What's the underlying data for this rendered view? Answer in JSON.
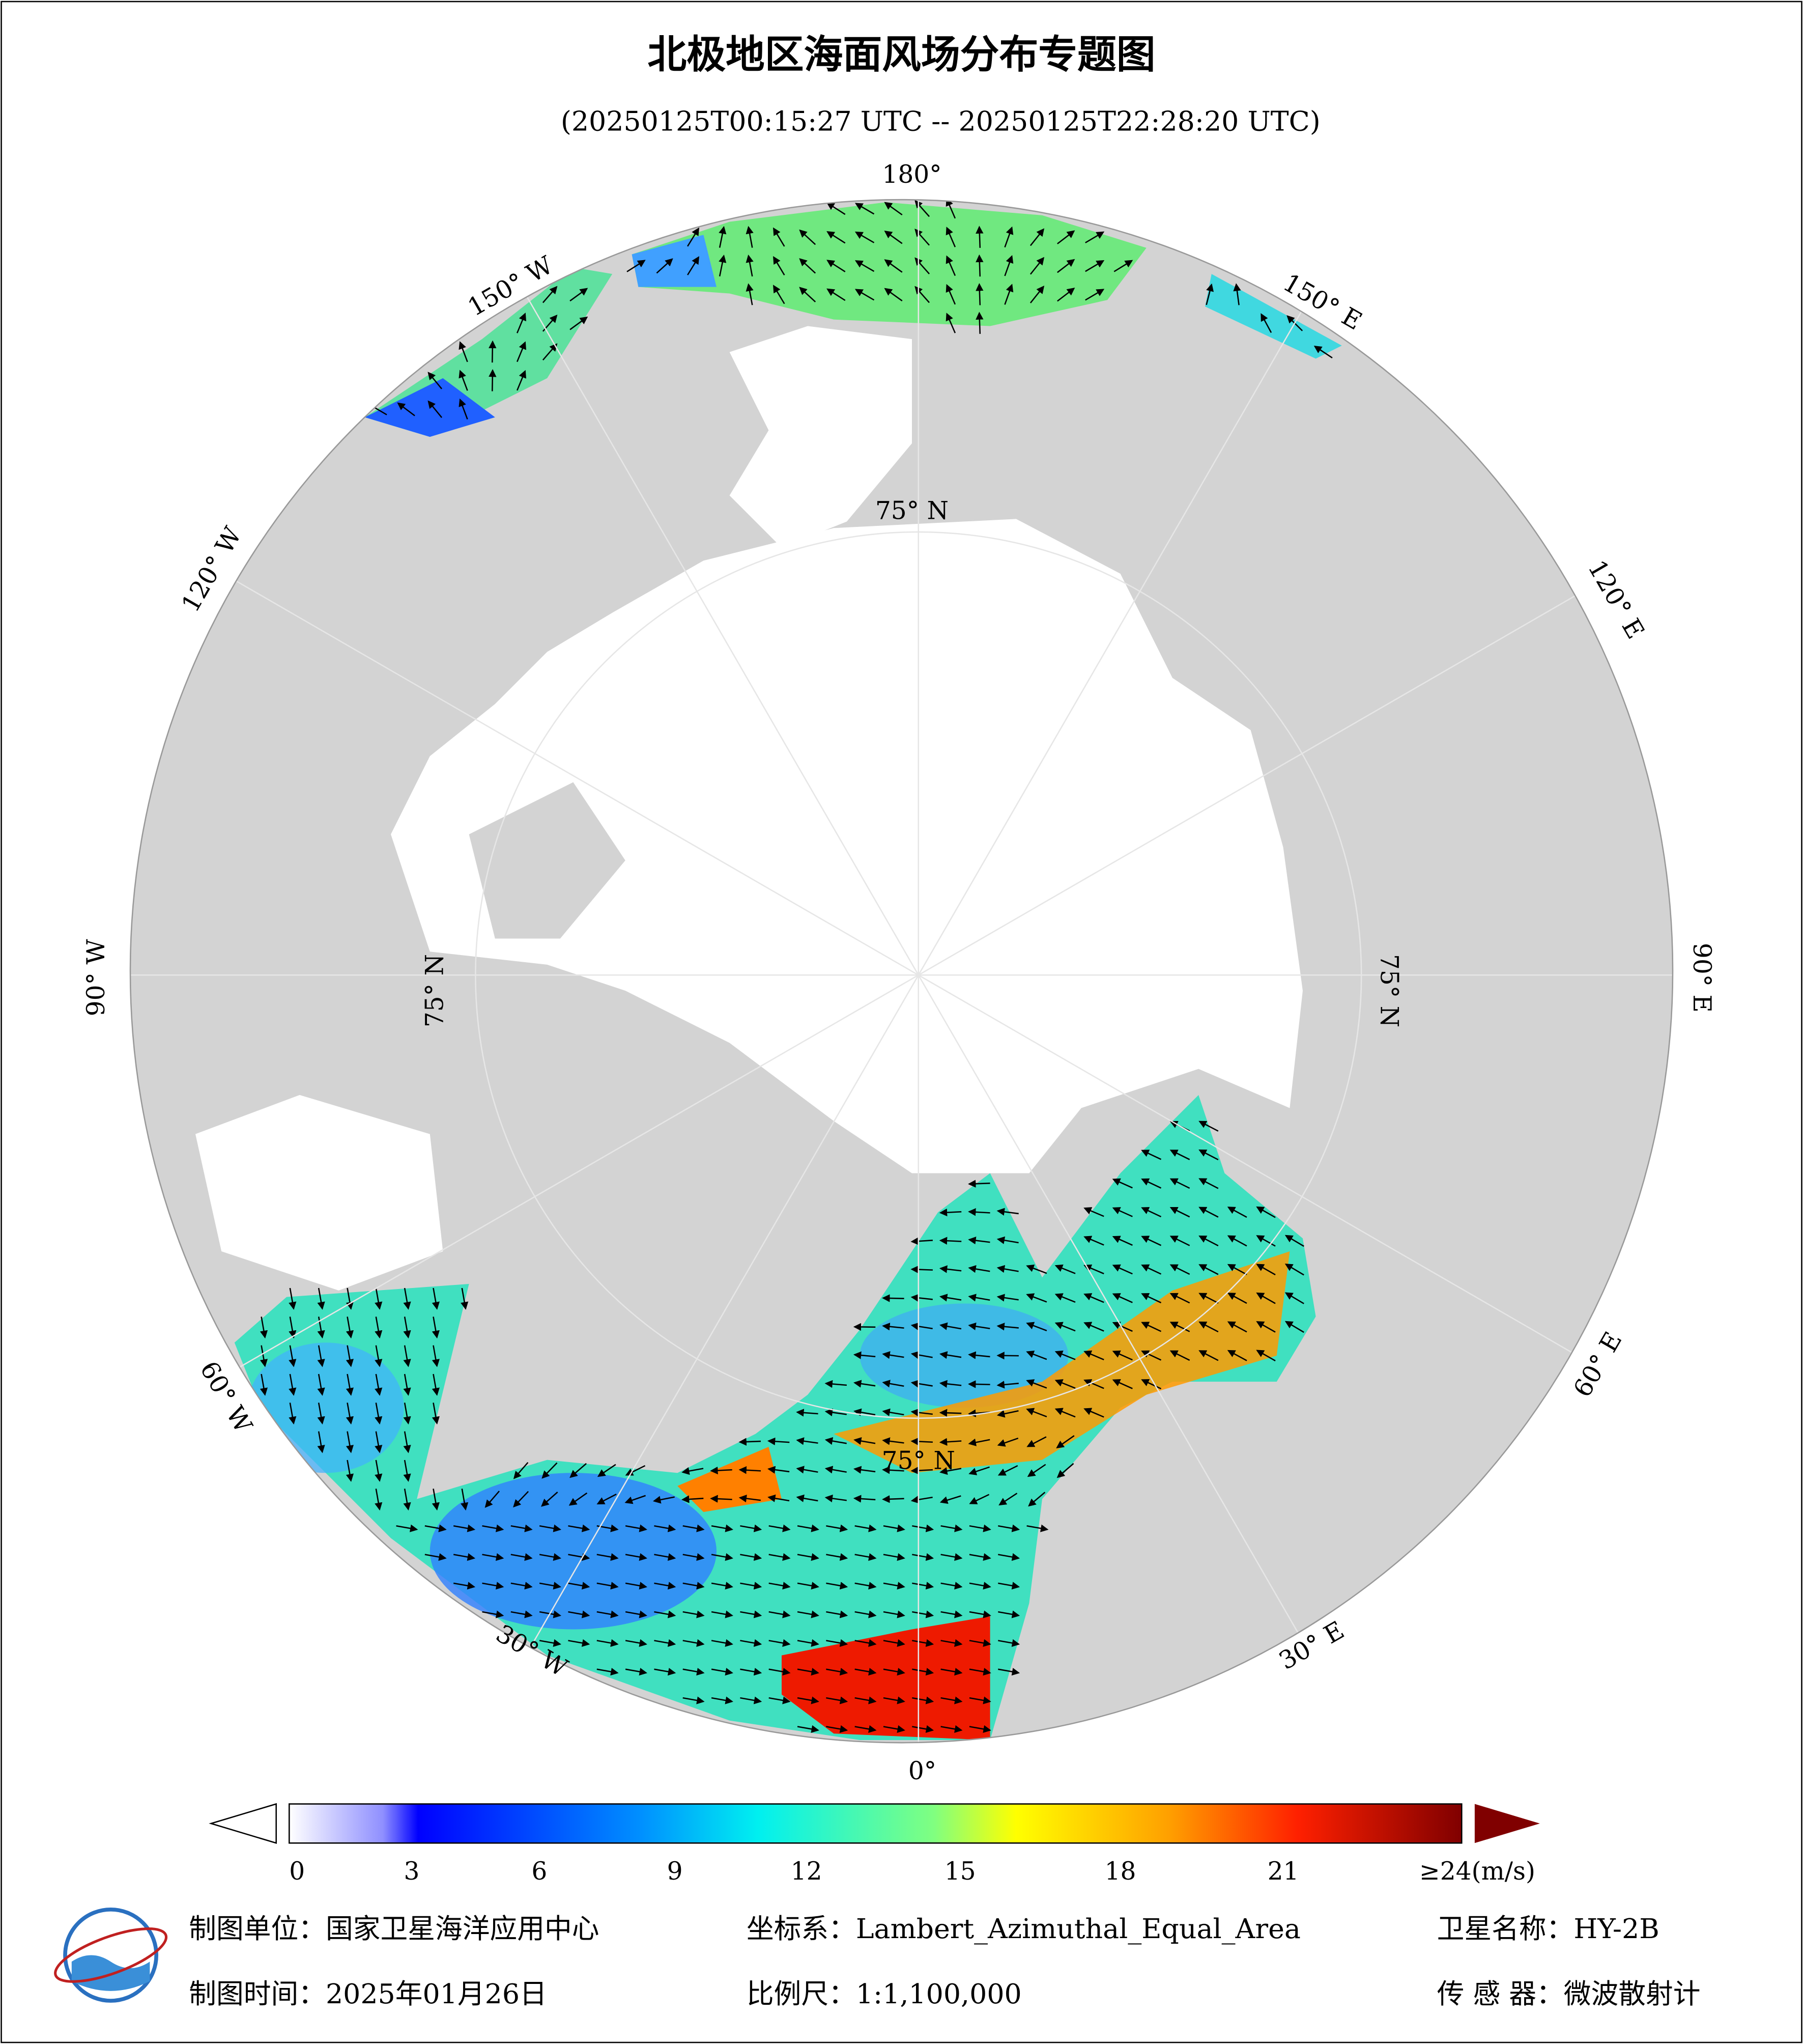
{
  "title": "北极地区海面风场分布专题图",
  "subtitle": "(20250125T00:15:27 UTC -- 20250125T22:28:20 UTC)",
  "map": {
    "lon_labels": [
      "180°",
      "150° W",
      "120° W",
      "90° W",
      "60° W",
      "30° W",
      "0°",
      "30° E",
      "60° E",
      "90° E",
      "120° E",
      "150° E"
    ],
    "lat_labels": [
      "75° N",
      "75° N",
      "75° N",
      "75° N"
    ]
  },
  "colorbar": {
    "ticks": [
      "0",
      "3",
      "6",
      "9",
      "12",
      "15",
      "18",
      "21",
      "≥24(m/s)"
    ]
  },
  "footer": {
    "unit": "制图单位：国家卫星海洋应用中心",
    "projection": "坐标系：Lambert_Azimuthal_Equal_Area",
    "satellite": "卫星名称：HY-2B",
    "date": "制图时间：2025年01月26日",
    "scale": "比例尺：1:1,100,000",
    "sensor": "传 感 器：微波散射计"
  }
}
